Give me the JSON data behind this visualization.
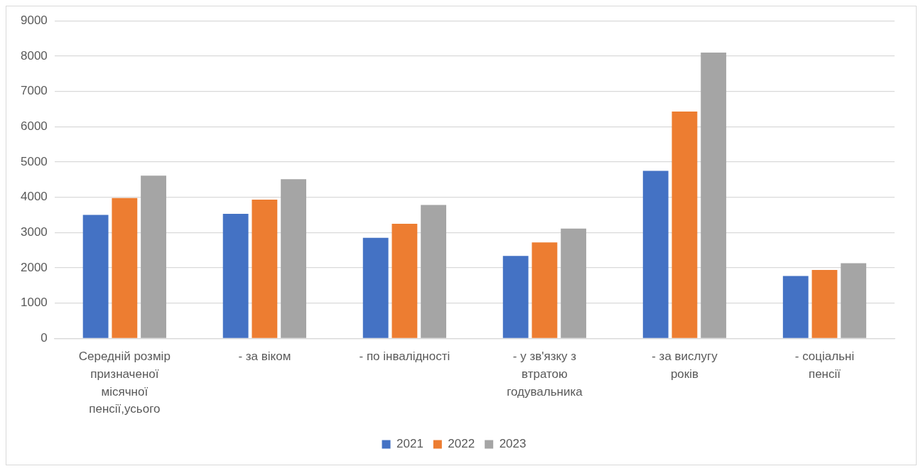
{
  "chart_data": {
    "type": "bar",
    "categories": [
      "Середній розмір призначеної місячної пенсії,усього",
      "- за віком",
      "- по інвалідності",
      "- у зв'язку з втратою годувальника",
      "- за вислугу років",
      "- соціальні пенсії"
    ],
    "series": [
      {
        "name": "2021",
        "color": "#4472c4",
        "values": [
          3500,
          3530,
          2850,
          2340,
          4750,
          1770
        ]
      },
      {
        "name": "2022",
        "color": "#ed7d31",
        "values": [
          3980,
          3930,
          3250,
          2720,
          6430,
          1940
        ]
      },
      {
        "name": "2023",
        "color": "#a5a5a5",
        "values": [
          4610,
          4510,
          3780,
          3110,
          8100,
          2130
        ]
      }
    ],
    "ylim": [
      0,
      9000
    ],
    "yticks": [
      0,
      1000,
      2000,
      3000,
      4000,
      5000,
      6000,
      7000,
      8000,
      9000
    ],
    "grid": "y",
    "legend": "bottom"
  }
}
